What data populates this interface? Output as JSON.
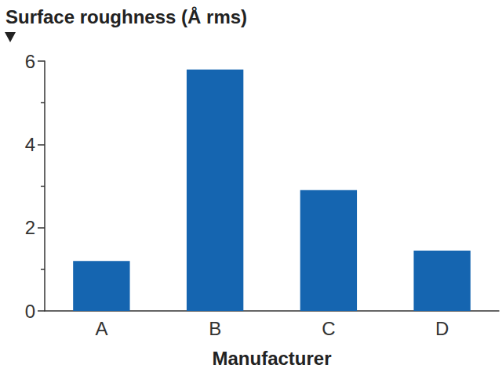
{
  "chart_data": {
    "type": "bar",
    "title": "Surface roughness (Å rms)",
    "x_label": "Manufacturer",
    "categories": [
      "A",
      "B",
      "C",
      "D"
    ],
    "values": [
      1.2,
      5.8,
      2.9,
      1.45
    ],
    "color": "#1565b0",
    "ylim": [
      0,
      6
    ],
    "yticks": [
      0,
      2,
      4,
      6
    ],
    "grid": false
  }
}
